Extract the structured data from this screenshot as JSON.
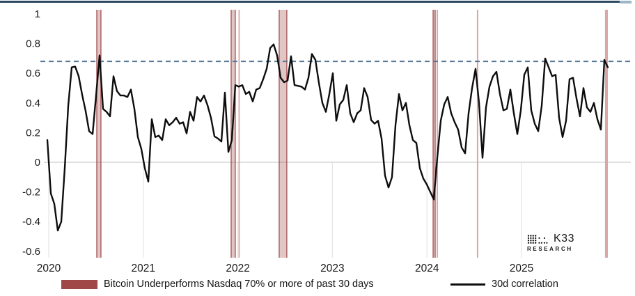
{
  "legend": {
    "band_label": "Bitcoin Underperforms Nasdaq 70% or more of past 30 days",
    "line_label": "30d correlation"
  },
  "branding": {
    "name": "K33",
    "sub": "RESEARCH"
  },
  "colors": {
    "line": "#0d0d0d",
    "band_edge": "#9c4343",
    "band_fill": "rgba(156,67,67,0.30)",
    "band_light": "#d9a7a7",
    "dashed": "#54789a",
    "zero_line": "#d6d6d6",
    "year_gridline": "#e4e4e4",
    "top_border": "#2c4a63",
    "text": "#1a1a1a",
    "legend_swatch": "#a04848"
  },
  "chart_data": {
    "type": "line",
    "title": "",
    "xlabel": "",
    "ylabel": "",
    "grid": "zero-line only, faint year gridlines below zero",
    "legend_position": "bottom",
    "ylim": [
      -0.6,
      1
    ],
    "xlim": [
      2019.95,
      2026.15
    ],
    "y_ticks": [
      1,
      0.8,
      0.6,
      0.4,
      0.2,
      0,
      -0.2,
      -0.4,
      -0.6
    ],
    "y_tick_labels": [
      "1",
      "0.8",
      "0.6",
      "0.4",
      "0.2",
      "0",
      "-0.2",
      "-0.4",
      "-0.6"
    ],
    "x_ticks": [
      2020,
      2021,
      2022,
      2023,
      2024,
      2025
    ],
    "x_tick_labels": [
      "2020",
      "2021",
      "2022",
      "2023",
      "2024",
      "2025"
    ],
    "reference_line": {
      "value": 0.68,
      "style": "dashed"
    },
    "underperformance_bands": [
      {
        "from": 2020.508,
        "to": 2020.552,
        "style": "dark"
      },
      {
        "from": 2021.929,
        "to": 2021.973,
        "style": "dark"
      },
      {
        "from": 2022.007,
        "to": 2022.02,
        "style": "light"
      },
      {
        "from": 2022.437,
        "to": 2022.518,
        "style": "dark"
      },
      {
        "from": 2024.065,
        "to": 2024.087,
        "style": "dark"
      },
      {
        "from": 2024.102,
        "to": 2024.116,
        "style": "light"
      },
      {
        "from": 2024.528,
        "to": 2024.543,
        "style": "light"
      },
      {
        "from": 2025.883,
        "to": 2025.913,
        "style": "light"
      }
    ],
    "series": [
      {
        "name": "30d correlation",
        "x_start": 2019.985,
        "x_step": 0.03682,
        "values": [
          0.15,
          -0.21,
          -0.28,
          -0.46,
          -0.4,
          -0.04,
          0.38,
          0.64,
          0.645,
          0.58,
          0.455,
          0.345,
          0.21,
          0.19,
          0.45,
          0.72,
          0.36,
          0.34,
          0.31,
          0.58,
          0.48,
          0.45,
          0.45,
          0.44,
          0.49,
          0.36,
          0.17,
          0.09,
          -0.04,
          -0.13,
          0.29,
          0.17,
          0.18,
          0.15,
          0.29,
          0.25,
          0.27,
          0.3,
          0.26,
          0.27,
          0.195,
          0.34,
          0.28,
          0.44,
          0.41,
          0.45,
          0.385,
          0.3,
          0.175,
          0.16,
          0.14,
          0.47,
          0.07,
          0.15,
          0.52,
          0.51,
          0.52,
          0.46,
          0.475,
          0.41,
          0.49,
          0.5,
          0.56,
          0.63,
          0.77,
          0.795,
          0.72,
          0.57,
          0.54,
          0.55,
          0.715,
          0.52,
          0.515,
          0.51,
          0.49,
          0.57,
          0.73,
          0.69,
          0.535,
          0.4,
          0.34,
          0.46,
          0.6,
          0.28,
          0.39,
          0.42,
          0.52,
          0.33,
          0.27,
          0.33,
          0.35,
          0.5,
          0.44,
          0.285,
          0.26,
          0.28,
          0.16,
          -0.09,
          -0.17,
          -0.1,
          0.25,
          0.46,
          0.35,
          0.4,
          0.25,
          0.15,
          0.13,
          -0.04,
          -0.11,
          -0.15,
          -0.2,
          -0.25,
          0.03,
          0.28,
          0.39,
          0.44,
          0.33,
          0.27,
          0.22,
          0.1,
          0.06,
          0.33,
          0.5,
          0.63,
          0.4,
          0.03,
          0.37,
          0.51,
          0.58,
          0.61,
          0.46,
          0.35,
          0.36,
          0.49,
          0.33,
          0.19,
          0.35,
          0.59,
          0.64,
          0.35,
          0.26,
          0.21,
          0.38,
          0.7,
          0.64,
          0.58,
          0.59,
          0.3,
          0.17,
          0.28,
          0.56,
          0.57,
          0.43,
          0.31,
          0.5,
          0.37,
          0.34,
          0.4,
          0.29,
          0.22,
          0.69,
          0.64
        ]
      }
    ]
  }
}
